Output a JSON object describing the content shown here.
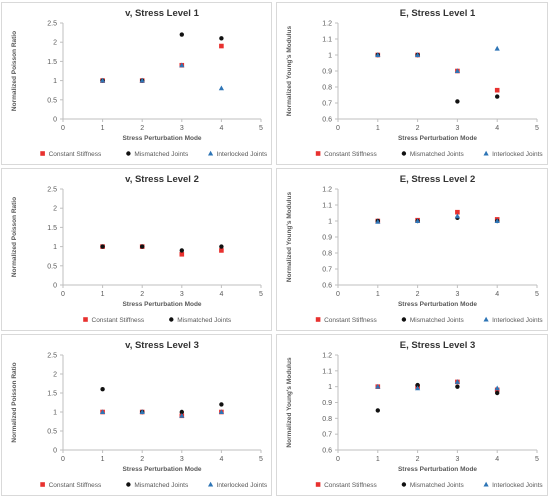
{
  "chart_data": [
    {
      "type": "scatter",
      "title": "v, Stress Level 1",
      "xlabel": "Stress Perturbation Mode",
      "ylabel": "Normalized Poisson Ratio",
      "xlim": [
        0,
        5
      ],
      "ylim": [
        0,
        2.5
      ],
      "xticks": [
        "0",
        "1",
        "2",
        "3",
        "4",
        "5"
      ],
      "yticks": [
        "0",
        "0.5",
        "1",
        "1.5",
        "2",
        "2.5"
      ],
      "grid": false,
      "legend_position": "bottom",
      "series": [
        {
          "name": "Constant Stiffness",
          "color": "#e8312f",
          "marker": "square",
          "x": [
            1,
            2,
            3,
            4
          ],
          "y": [
            1.0,
            1.0,
            1.4,
            1.9
          ]
        },
        {
          "name": "Mismatched Joints",
          "color": "#111111",
          "marker": "circle",
          "x": [
            1,
            2,
            3,
            4
          ],
          "y": [
            1.0,
            1.0,
            2.2,
            2.1
          ]
        },
        {
          "name": "Interlocked Joints",
          "color": "#2e75b6",
          "marker": "triangle",
          "x": [
            1,
            2,
            3,
            4
          ],
          "y": [
            1.0,
            1.0,
            1.4,
            0.8
          ]
        }
      ]
    },
    {
      "type": "scatter",
      "title": "E, Stress Level 1",
      "xlabel": "Stress Perturbation Mode",
      "ylabel": "Normalized Young's Modulus",
      "xlim": [
        0,
        5
      ],
      "ylim": [
        0.6,
        1.2
      ],
      "xticks": [
        "0",
        "1",
        "2",
        "3",
        "4",
        "5"
      ],
      "yticks": [
        "0.6",
        "0.7",
        "0.8",
        "0.9",
        "1",
        "1.1",
        "1.2"
      ],
      "grid": false,
      "legend_position": "bottom",
      "series": [
        {
          "name": "Constant Stiffness",
          "color": "#e8312f",
          "marker": "square",
          "x": [
            1,
            2,
            3,
            4
          ],
          "y": [
            1.0,
            1.0,
            0.9,
            0.78
          ]
        },
        {
          "name": "Mismatched Joints",
          "color": "#111111",
          "marker": "circle",
          "x": [
            1,
            2,
            3,
            4
          ],
          "y": [
            1.0,
            1.0,
            0.71,
            0.74
          ]
        },
        {
          "name": "Interlocked Joints",
          "color": "#2e75b6",
          "marker": "triangle",
          "x": [
            1,
            2,
            3,
            4
          ],
          "y": [
            1.0,
            1.0,
            0.9,
            1.04
          ]
        }
      ]
    },
    {
      "type": "scatter",
      "title": "v, Stress Level 2",
      "xlabel": "Stress Perturbation Mode",
      "ylabel": "Normalized Poisson Ratio",
      "xlim": [
        0,
        5
      ],
      "ylim": [
        0,
        2.5
      ],
      "xticks": [
        "0",
        "1",
        "2",
        "3",
        "4",
        "5"
      ],
      "yticks": [
        "0",
        "0.5",
        "1",
        "1.5",
        "2",
        "2.5"
      ],
      "grid": false,
      "legend_position": "bottom",
      "series": [
        {
          "name": "Constant Stiffness",
          "color": "#e8312f",
          "marker": "square",
          "x": [
            1,
            2,
            3,
            4
          ],
          "y": [
            1.0,
            1.0,
            0.8,
            0.9
          ]
        },
        {
          "name": "Mismatched Joints",
          "color": "#111111",
          "marker": "circle",
          "x": [
            1,
            2,
            3,
            4
          ],
          "y": [
            1.0,
            1.0,
            0.9,
            1.0
          ]
        }
      ]
    },
    {
      "type": "scatter",
      "title": "E, Stress Level 2",
      "xlabel": "Stress Perturbation Mode",
      "ylabel": "Normalized Young's Modulus",
      "xlim": [
        0,
        5
      ],
      "ylim": [
        0.6,
        1.2
      ],
      "xticks": [
        "0",
        "1",
        "2",
        "3",
        "4",
        "5"
      ],
      "yticks": [
        "0.6",
        "0.7",
        "0.8",
        "0.9",
        "1",
        "1.1",
        "1.2"
      ],
      "grid": false,
      "legend_position": "bottom",
      "series": [
        {
          "name": "Constant Stiffness",
          "color": "#e8312f",
          "marker": "square",
          "x": [
            1,
            2,
            3,
            4
          ],
          "y": [
            1.0,
            1.005,
            1.055,
            1.01
          ]
        },
        {
          "name": "Mismatched Joints",
          "color": "#111111",
          "marker": "circle",
          "x": [
            1,
            2,
            3,
            4
          ],
          "y": [
            1.0,
            1.0,
            1.02,
            1.0
          ]
        },
        {
          "name": "Interlocked Joints",
          "color": "#2e75b6",
          "marker": "triangle",
          "x": [
            1,
            2,
            3,
            4
          ],
          "y": [
            0.995,
            1.0,
            1.03,
            1.0
          ]
        }
      ]
    },
    {
      "type": "scatter",
      "title": "v, Stress Level 3",
      "xlabel": "Stress Perturbation Mode",
      "ylabel": "Normalized Poisson Ratio",
      "xlim": [
        0,
        5
      ],
      "ylim": [
        0,
        2.5
      ],
      "xticks": [
        "0",
        "1",
        "2",
        "3",
        "4",
        "5"
      ],
      "yticks": [
        "0",
        "0.5",
        "1",
        "1.5",
        "2",
        "2.5"
      ],
      "grid": false,
      "legend_position": "bottom",
      "series": [
        {
          "name": "Constant Stiffness",
          "color": "#e8312f",
          "marker": "square",
          "x": [
            1,
            2,
            3,
            4
          ],
          "y": [
            1.0,
            1.0,
            0.9,
            1.0
          ]
        },
        {
          "name": "Mismatched Joints",
          "color": "#111111",
          "marker": "circle",
          "x": [
            1,
            2,
            3,
            4
          ],
          "y": [
            1.6,
            1.0,
            1.0,
            1.2
          ]
        },
        {
          "name": "Interlocked Joints",
          "color": "#2e75b6",
          "marker": "triangle",
          "x": [
            1,
            2,
            3,
            4
          ],
          "y": [
            1.0,
            1.0,
            0.9,
            1.0
          ]
        }
      ]
    },
    {
      "type": "scatter",
      "title": "E, Stress Level 3",
      "xlabel": "Stress Perturbation Mode",
      "ylabel": "Normalized Young's Modulus",
      "xlim": [
        0,
        5
      ],
      "ylim": [
        0.6,
        1.2
      ],
      "xticks": [
        "0",
        "1",
        "2",
        "3",
        "4",
        "5"
      ],
      "yticks": [
        "0.6",
        "0.7",
        "0.8",
        "0.9",
        "1",
        "1.1",
        "1.2"
      ],
      "grid": false,
      "legend_position": "bottom",
      "series": [
        {
          "name": "Constant Stiffness",
          "color": "#e8312f",
          "marker": "square",
          "x": [
            1,
            2,
            3,
            4
          ],
          "y": [
            1.0,
            1.0,
            1.03,
            0.98
          ]
        },
        {
          "name": "Mismatched Joints",
          "color": "#111111",
          "marker": "circle",
          "x": [
            1,
            2,
            3,
            4
          ],
          "y": [
            0.85,
            1.01,
            1.0,
            0.96
          ]
        },
        {
          "name": "Interlocked Joints",
          "color": "#2e75b6",
          "marker": "triangle",
          "x": [
            1,
            2,
            3,
            4
          ],
          "y": [
            1.0,
            0.99,
            1.03,
            0.99
          ]
        }
      ]
    }
  ]
}
